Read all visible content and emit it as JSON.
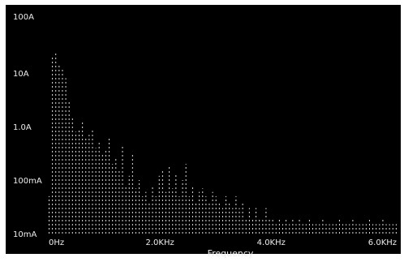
{
  "chart_data": {
    "type": "bar",
    "title": "",
    "xlabel": "Frequency",
    "ylabel": "",
    "y_scale": "log",
    "x_unit": "Hz",
    "y_unit": "A",
    "xlim": [
      0,
      6300
    ],
    "ylim": [
      0.01,
      100
    ],
    "grid": false,
    "legend": "none",
    "x_tick_values": [
      0,
      2000,
      4000,
      6000
    ],
    "x_tick_labels": [
      "0Hz",
      "2.0KHz",
      "4.0KHz",
      "6.0KHz"
    ],
    "y_tick_values": [
      100,
      10,
      1,
      0.1,
      0.01
    ],
    "y_tick_labels": [
      "100A",
      "10A",
      "1.0A",
      "100mA",
      "10mA"
    ],
    "colors": {
      "background": "#000000",
      "trace": "#dddddd",
      "text": "#eeeeee"
    },
    "series": [
      {
        "x": [
          0,
          60,
          120,
          180,
          240,
          300,
          360,
          420,
          480,
          540,
          600,
          660,
          720,
          780,
          840,
          900,
          960,
          1020,
          1080,
          1140,
          1200,
          1260,
          1320,
          1380,
          1440,
          1500,
          1560,
          1620,
          1680,
          1740,
          1800,
          1860,
          1920,
          1980,
          2040,
          2100,
          2160,
          2220,
          2280,
          2340,
          2400,
          2460,
          2520,
          2580,
          2640,
          2700,
          2760,
          2820,
          2880,
          2940,
          3000,
          3060,
          3120,
          3180,
          3240,
          3300,
          3360,
          3420,
          3480,
          3540,
          3600,
          3660,
          3720,
          3780,
          3840,
          3900,
          3960,
          4020,
          4080,
          4140,
          4200,
          4260,
          4320,
          4380,
          4440,
          4500,
          4560,
          4620,
          4680,
          4740,
          4800,
          4860,
          4920,
          4980,
          5040,
          5100,
          5160,
          5220,
          5280,
          5340,
          5400,
          5460,
          5520,
          5580,
          5640,
          5700,
          5760,
          5820,
          5880,
          5940,
          6000,
          6060,
          6120,
          6180,
          6240
        ],
        "values": [
          0.05,
          20,
          25,
          15,
          12,
          8,
          3,
          1.5,
          0.8,
          0.9,
          1.2,
          0.6,
          0.7,
          0.9,
          0.4,
          0.5,
          0.3,
          0.35,
          0.6,
          0.2,
          0.25,
          0.15,
          0.45,
          0.08,
          0.12,
          0.3,
          0.07,
          0.1,
          0.05,
          0.06,
          0.04,
          0.08,
          0.05,
          0.12,
          0.15,
          0.06,
          0.18,
          0.07,
          0.13,
          0.05,
          0.1,
          0.2,
          0.05,
          0.08,
          0.04,
          0.06,
          0.07,
          0.05,
          0.04,
          0.06,
          0.05,
          0.04,
          0.03,
          0.05,
          0.04,
          0.03,
          0.05,
          0.03,
          0.04,
          0.02,
          0.03,
          0.02,
          0.03,
          0.02,
          0.02,
          0.03,
          0.02,
          0.02,
          0.015,
          0.02,
          0.015,
          0.02,
          0.015,
          0.02,
          0.015,
          0.02,
          0.015,
          0.015,
          0.02,
          0.015,
          0.015,
          0.015,
          0.02,
          0.015,
          0.015,
          0.015,
          0.015,
          0.02,
          0.015,
          0.015,
          0.015,
          0.02,
          0.015,
          0.015,
          0.015,
          0.015,
          0.02,
          0.015,
          0.015,
          0.015,
          0.02,
          0.015,
          0.015,
          0.015,
          0.015
        ]
      }
    ]
  }
}
